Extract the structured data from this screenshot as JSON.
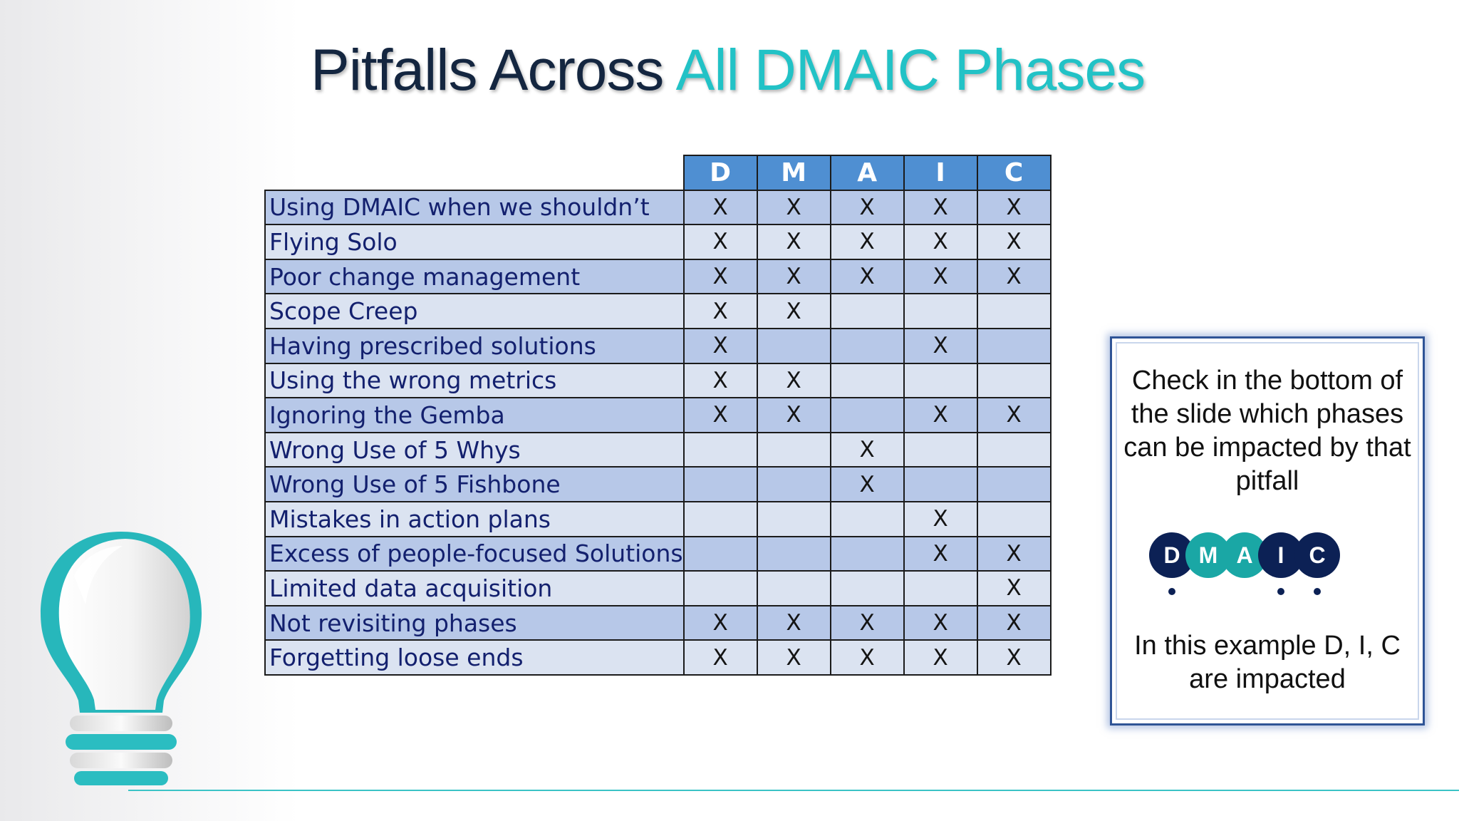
{
  "slide": {
    "title_part1": "Pitfalls Across",
    "title_part2": "All DMAIC Phases",
    "accent_color": "#22c2c6",
    "title_color": "#142640"
  },
  "matrix": {
    "phases": [
      "D",
      "M",
      "A",
      "I",
      "C"
    ],
    "rows": [
      {
        "label": "Using DMAIC when we shouldn’t",
        "marks": [
          "X",
          "X",
          "X",
          "X",
          "X"
        ]
      },
      {
        "label": "Flying Solo",
        "marks": [
          "X",
          "X",
          "X",
          "X",
          "X"
        ]
      },
      {
        "label": "Poor change management",
        "marks": [
          "X",
          "X",
          "X",
          "X",
          "X"
        ]
      },
      {
        "label": "Scope Creep",
        "marks": [
          "X",
          "X",
          "",
          "",
          ""
        ]
      },
      {
        "label": "Having prescribed solutions",
        "marks": [
          "X",
          "",
          "",
          "X",
          ""
        ]
      },
      {
        "label": "Using the wrong metrics",
        "marks": [
          "X",
          "X",
          "",
          "",
          ""
        ]
      },
      {
        "label": "Ignoring the Gemba",
        "marks": [
          "X",
          "X",
          "",
          "X",
          "X"
        ]
      },
      {
        "label": "Wrong Use of 5 Whys",
        "marks": [
          "",
          "",
          "X",
          "",
          ""
        ]
      },
      {
        "label": "Wrong Use of 5 Fishbone",
        "marks": [
          "",
          "",
          "X",
          "",
          ""
        ]
      },
      {
        "label": "Mistakes in action plans",
        "marks": [
          "",
          "",
          "",
          "X",
          ""
        ]
      },
      {
        "label": "Excess of people-focused Solutions",
        "marks": [
          "",
          "",
          "",
          "X",
          "X"
        ]
      },
      {
        "label": "Limited data acquisition",
        "marks": [
          "",
          "",
          "",
          "",
          "X"
        ]
      },
      {
        "label": "Not revisiting phases",
        "marks": [
          "X",
          "X",
          "X",
          "X",
          "X"
        ]
      },
      {
        "label": "Forgetting loose ends",
        "marks": [
          "X",
          "X",
          "X",
          "X",
          "X"
        ]
      }
    ]
  },
  "note": {
    "instruction": "Check in the bottom of the slide which phases can be impacted by that pitfall",
    "example_badges": [
      {
        "letter": "D",
        "color": "#0c2155",
        "impacted": true
      },
      {
        "letter": "M",
        "color": "#1aa7a5",
        "impacted": false
      },
      {
        "letter": "A",
        "color": "#1aa7a5",
        "impacted": false
      },
      {
        "letter": "I",
        "color": "#0c2155",
        "impacted": true
      },
      {
        "letter": "C",
        "color": "#0c2155",
        "impacted": true
      }
    ],
    "example_text": "In this example D, I, C are impacted"
  },
  "decor": {
    "icon": "lightbulb-icon",
    "line_color": "#3bc3c6"
  }
}
